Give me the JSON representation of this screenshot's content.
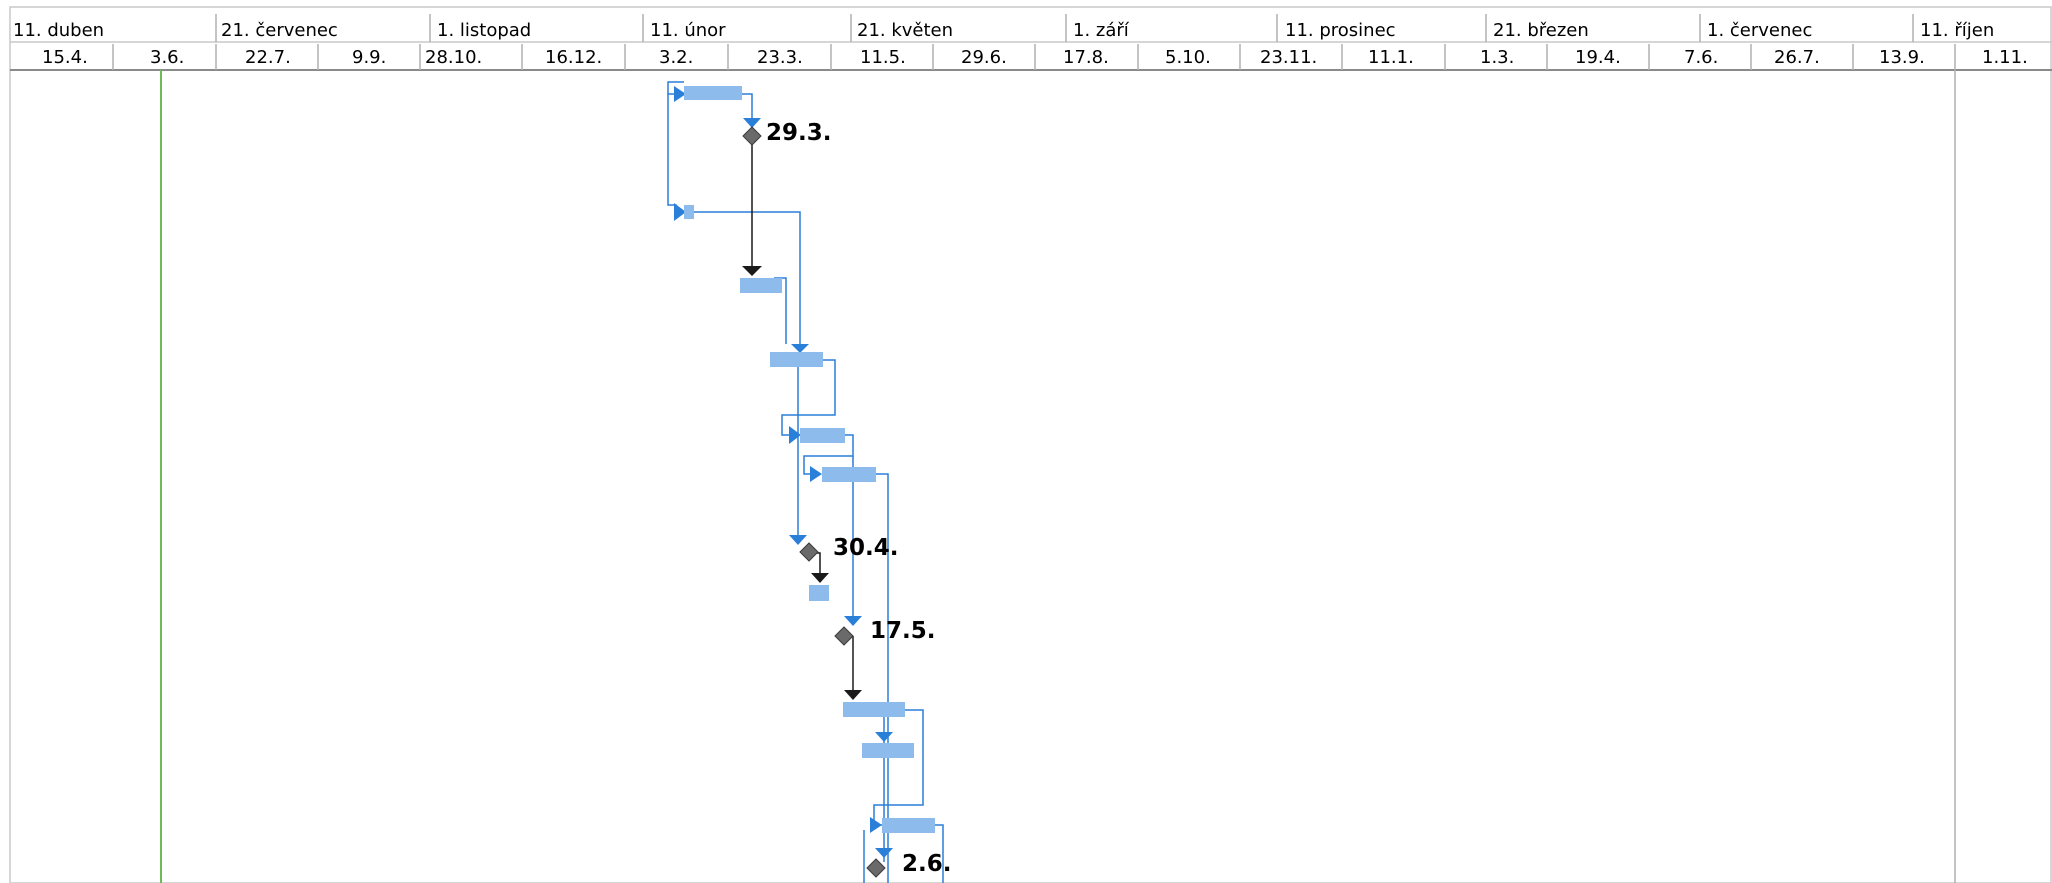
{
  "timescale": {
    "top_tier": [
      "11. duben",
      "21. červenec",
      "1. listopad",
      "11. únor",
      "21. květen",
      "1. září",
      "11. prosinec",
      "21. březen",
      "1. červenec",
      "11. říjen"
    ],
    "bottom_tier": [
      "15.4.",
      "3.6.",
      "22.7.",
      "9.9.",
      "28.10.",
      "16.12.",
      "3.2.",
      "23.3.",
      "11.5.",
      "29.6.",
      "17.8.",
      "5.10.",
      "23.11.",
      "11.1.",
      "1.3.",
      "19.4.",
      "7.6.",
      "26.7.",
      "13.9.",
      "1.11."
    ]
  },
  "milestones": [
    {
      "label": "29.3."
    },
    {
      "label": "30.4."
    },
    {
      "label": "17.5."
    },
    {
      "label": "2.6."
    }
  ],
  "colors": {
    "task_bar": "#8dbbec",
    "link_blue": "#2a7fd8",
    "link_dark": "#1a1a1a",
    "milestone": "#6a6a6a",
    "current_date_line": "#6dbb57",
    "gridline": "#c8c8c8"
  }
}
